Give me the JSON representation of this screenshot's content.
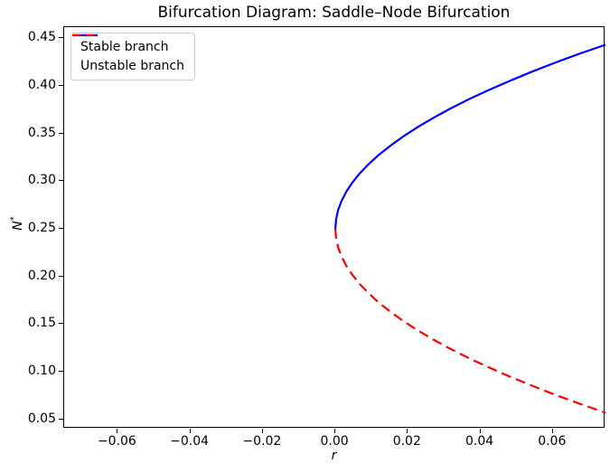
{
  "figure": {
    "title": "Bifurcation Diagram: Saddle–Node Bifurcation",
    "xlabel": "r",
    "ylabel": "N*",
    "ylabel_base": "N",
    "ylabel_sup": "*",
    "background_color": "#ffffff",
    "spine_color": "#000000"
  },
  "chart_data": {
    "type": "line",
    "title": "Bifurcation Diagram: Saddle–Node Bifurcation",
    "xlabel": "r",
    "ylabel": "N*",
    "xlim": [
      -0.0748,
      0.0745
    ],
    "ylim": [
      0.0403,
      0.4614
    ],
    "grid": false,
    "legend_position": "upper left",
    "bifurcation_point": {
      "r": 0.0,
      "N": 0.25
    },
    "x_ticks": [
      {
        "value": -0.06,
        "label": "−0.06"
      },
      {
        "value": -0.04,
        "label": "−0.04"
      },
      {
        "value": -0.02,
        "label": "−0.02"
      },
      {
        "value": 0.0,
        "label": "0.00"
      },
      {
        "value": 0.02,
        "label": "0.02"
      },
      {
        "value": 0.04,
        "label": "0.04"
      },
      {
        "value": 0.06,
        "label": "0.06"
      }
    ],
    "y_ticks": [
      {
        "value": 0.05,
        "label": "0.05"
      },
      {
        "value": 0.1,
        "label": "0.10"
      },
      {
        "value": 0.15,
        "label": "0.15"
      },
      {
        "value": 0.2,
        "label": "0.20"
      },
      {
        "value": 0.25,
        "label": "0.25"
      },
      {
        "value": 0.3,
        "label": "0.30"
      },
      {
        "value": 0.35,
        "label": "0.35"
      },
      {
        "value": 0.4,
        "label": "0.40"
      },
      {
        "value": 0.45,
        "label": "0.45"
      }
    ],
    "series": [
      {
        "name": "Stable branch",
        "color": "#0000ff",
        "style": "solid",
        "width": 2.2,
        "x": [
          0,
          0.000188,
          0.00075,
          0.001688,
          0.003,
          0.004688,
          0.00675,
          0.009188,
          0.012,
          0.015188,
          0.01875,
          0.022688,
          0.027,
          0.031688,
          0.03675,
          0.042188,
          0.048,
          0.054188,
          0.06075,
          0.067688,
          0.075
        ],
        "y": [
          0.25,
          0.2597,
          0.2694,
          0.279,
          0.2887,
          0.2984,
          0.3081,
          0.3178,
          0.3275,
          0.3371,
          0.3468,
          0.3565,
          0.3662,
          0.3759,
          0.3856,
          0.3952,
          0.4049,
          0.4146,
          0.4243,
          0.434,
          0.4436
        ]
      },
      {
        "name": "Unstable branch",
        "color": "#ff0000",
        "style": "dashed",
        "width": 2.2,
        "x": [
          0,
          0.000188,
          0.00075,
          0.001688,
          0.003,
          0.004688,
          0.00675,
          0.009188,
          0.012,
          0.015188,
          0.01875,
          0.022688,
          0.027,
          0.031688,
          0.03675,
          0.042188,
          0.048,
          0.054188,
          0.06075,
          0.067688,
          0.075
        ],
        "y": [
          0.25,
          0.2403,
          0.2306,
          0.221,
          0.2113,
          0.2016,
          0.1919,
          0.1822,
          0.1725,
          0.1629,
          0.1532,
          0.1435,
          0.1338,
          0.1241,
          0.1144,
          0.1048,
          0.0951,
          0.0854,
          0.0757,
          0.066,
          0.0564
        ]
      }
    ]
  }
}
